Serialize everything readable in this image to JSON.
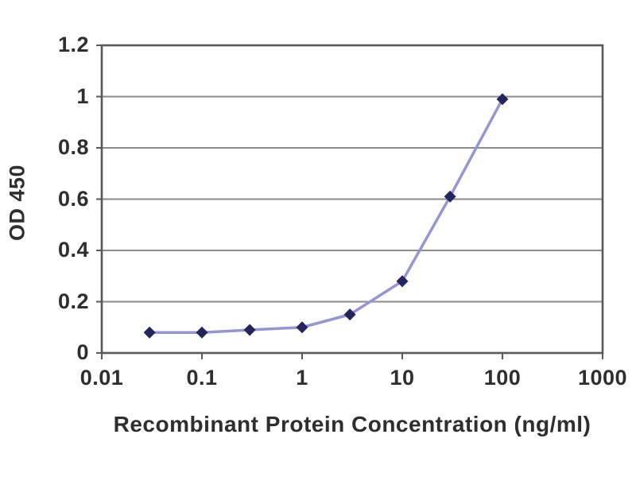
{
  "figure": {
    "description": "ELISA standard curve",
    "background_color": "#fefefe"
  },
  "chart_data": {
    "type": "line",
    "title": "",
    "xlabel": "Recombinant Protein Concentration (ng/ml)",
    "ylabel": "OD 450",
    "x_scale": "log",
    "xlim": [
      0.01,
      1000
    ],
    "ylim": [
      0,
      1.2
    ],
    "x_ticks": [
      "0.01",
      "0.1",
      "1",
      "10",
      "100",
      "1000"
    ],
    "x_tick_values": [
      0.01,
      0.1,
      1,
      10,
      100,
      1000
    ],
    "y_ticks": [
      "0",
      "0.2",
      "0.4",
      "0.6",
      "0.8",
      "1",
      "1.2"
    ],
    "y_tick_values": [
      0,
      0.2,
      0.4,
      0.6,
      0.8,
      1,
      1.2
    ],
    "grid": "horizontal",
    "legend": "none",
    "series": [
      {
        "name": "OD 450",
        "x": [
          0.03,
          0.1,
          0.3,
          1,
          3,
          10,
          30,
          100
        ],
        "y": [
          0.08,
          0.08,
          0.09,
          0.1,
          0.15,
          0.28,
          0.61,
          0.99
        ],
        "marker": "diamond"
      }
    ]
  },
  "colors": {
    "grid_line": "#8c8c8c",
    "axis_frame": "#595959",
    "curve_line": "#9696cf",
    "marker_fill": "#25255e",
    "text": "#2e2e2e"
  }
}
